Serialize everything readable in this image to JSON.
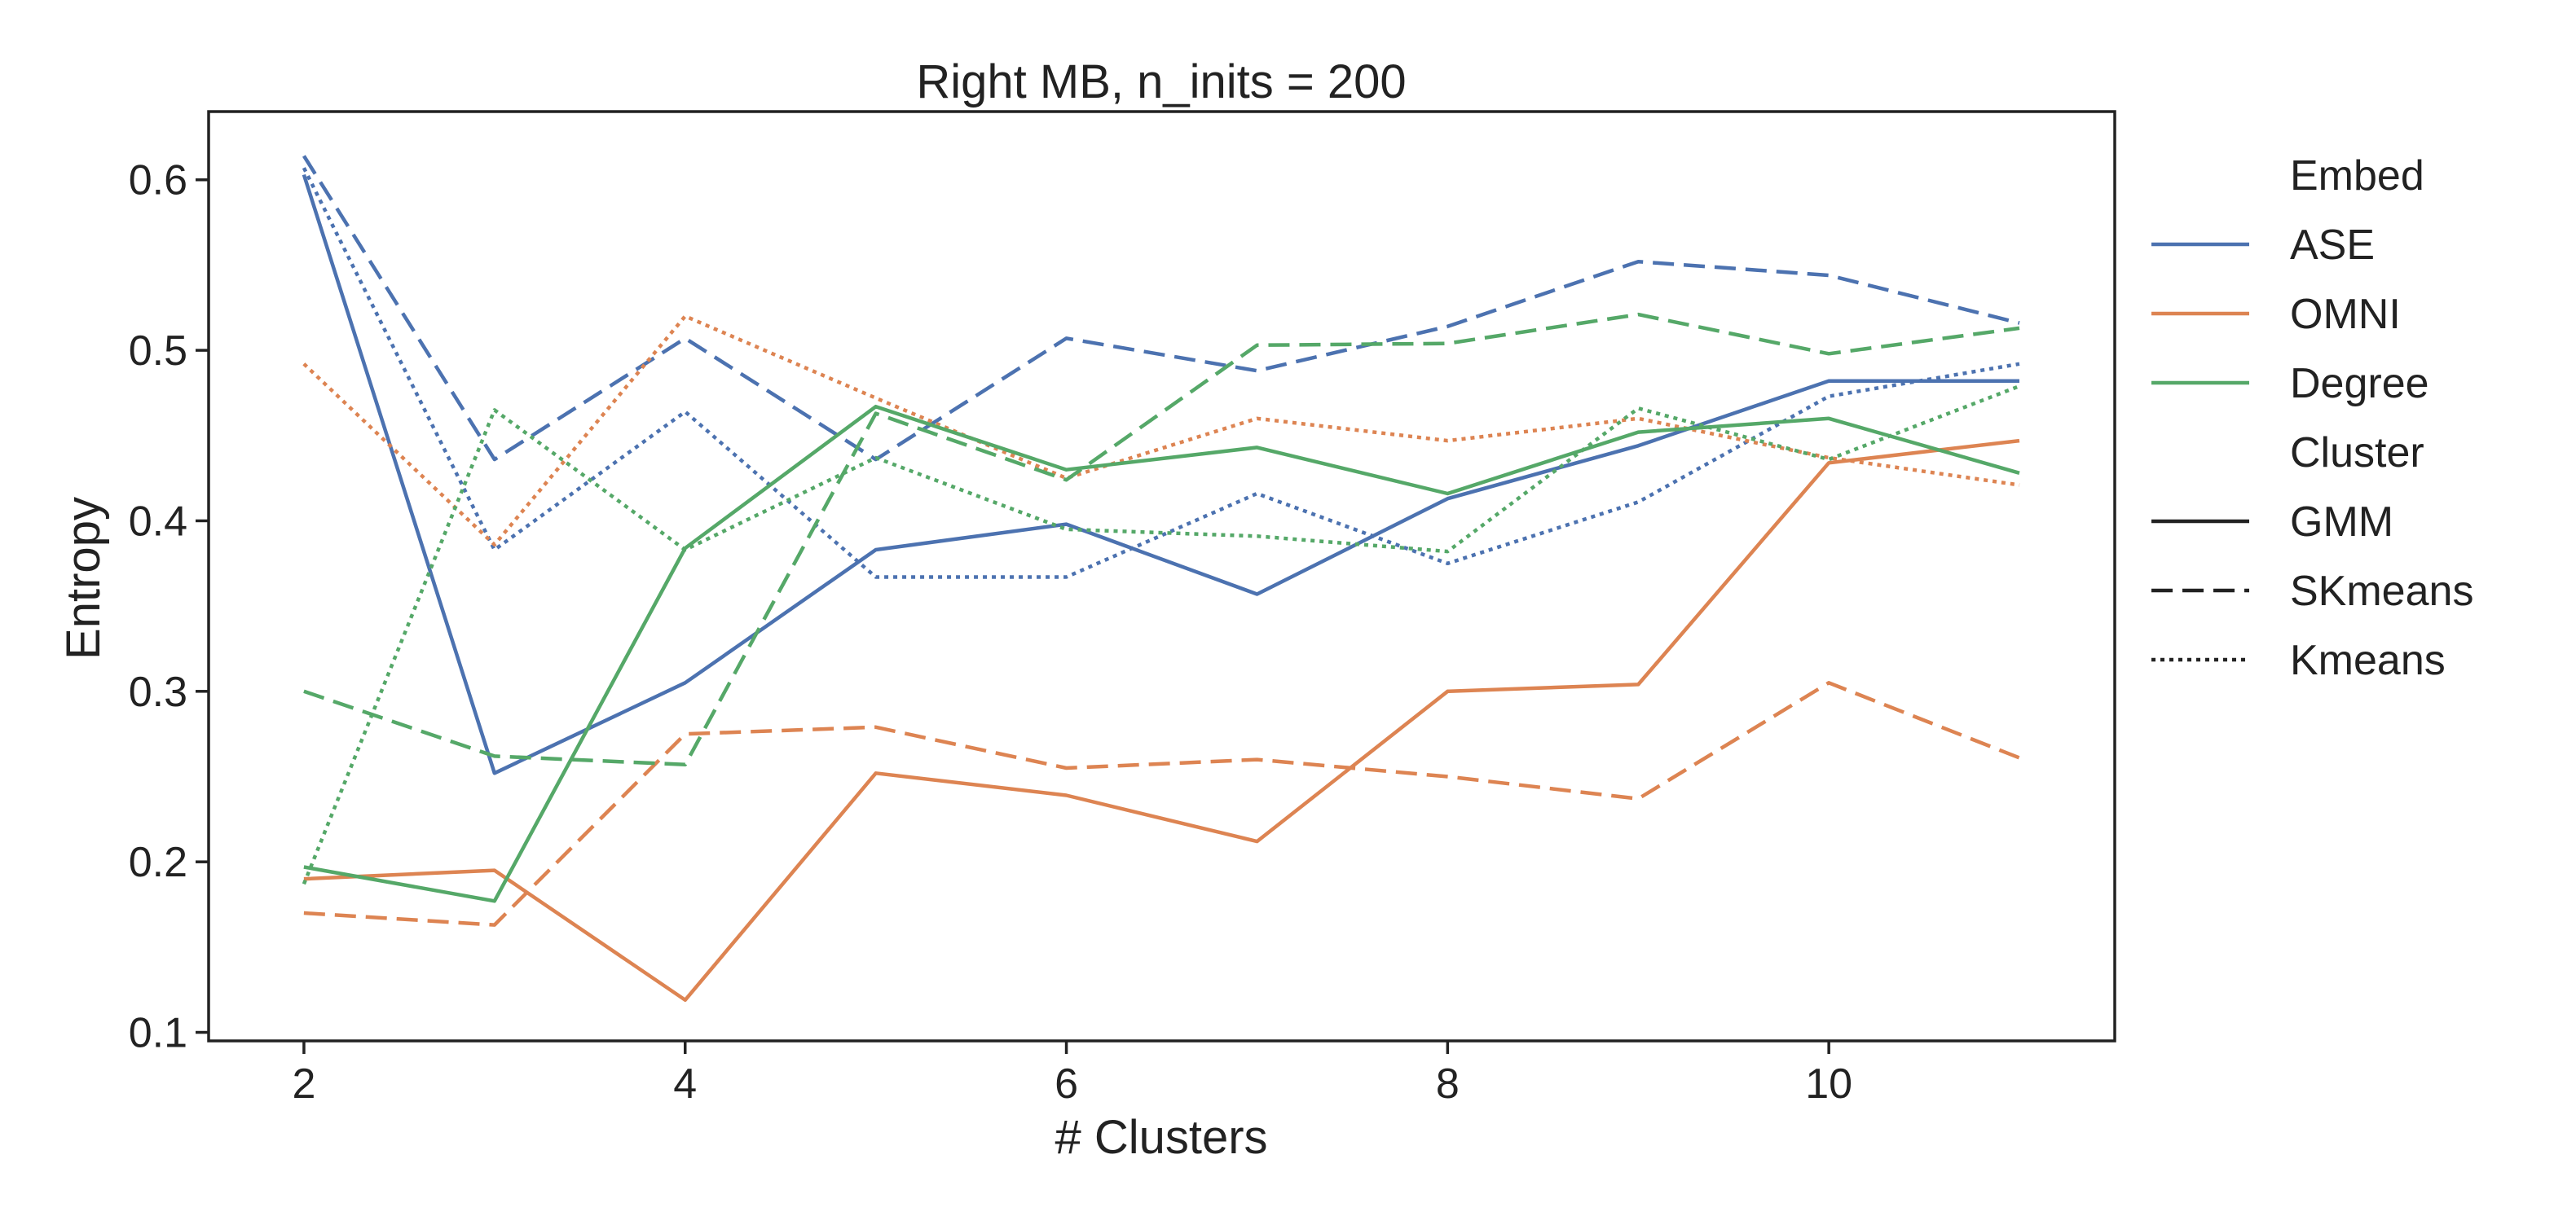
{
  "chart_data": {
    "type": "line",
    "title": "Right MB, n_inits = 200",
    "xlabel": "# Clusters",
    "ylabel": "Entropy",
    "xlim": [
      1.5,
      11.5
    ],
    "ylim": [
      0.095,
      0.64
    ],
    "xticks": [
      2,
      4,
      6,
      8,
      10
    ],
    "yticks": [
      0.1,
      0.2,
      0.3,
      0.4,
      0.5,
      0.6
    ],
    "x": [
      2,
      3,
      4,
      5,
      6,
      7,
      8,
      9,
      10,
      11
    ],
    "legend": {
      "placement": "outside-right",
      "groups": [
        {
          "title": "Embed",
          "entries": [
            {
              "label": "ASE",
              "color": "#4c72b0",
              "dash": "solid"
            },
            {
              "label": "OMNI",
              "color": "#dd8452",
              "dash": "solid"
            },
            {
              "label": "Degree",
              "color": "#55a868",
              "dash": "solid"
            }
          ]
        },
        {
          "title": "Cluster",
          "entries": [
            {
              "label": "GMM",
              "color": "#222222",
              "dash": "solid"
            },
            {
              "label": "SKmeans",
              "color": "#222222",
              "dash": "dashed"
            },
            {
              "label": "Kmeans",
              "color": "#222222",
              "dash": "dotted"
            }
          ]
        }
      ]
    },
    "series": [
      {
        "embed": "ASE",
        "cluster": "GMM",
        "color": "#4c72b0",
        "dash": "solid",
        "values": [
          0.603,
          0.252,
          0.305,
          0.383,
          0.398,
          0.357,
          0.413,
          0.444,
          0.482,
          0.482
        ]
      },
      {
        "embed": "ASE",
        "cluster": "SKmeans",
        "color": "#4c72b0",
        "dash": "dashed",
        "values": [
          0.614,
          0.436,
          0.507,
          0.436,
          0.507,
          0.488,
          0.514,
          0.552,
          0.544,
          0.516
        ]
      },
      {
        "embed": "ASE",
        "cluster": "Kmeans",
        "color": "#4c72b0",
        "dash": "dotted",
        "values": [
          0.607,
          0.383,
          0.464,
          0.367,
          0.367,
          0.416,
          0.375,
          0.411,
          0.473,
          0.492
        ]
      },
      {
        "embed": "OMNI",
        "cluster": "GMM",
        "color": "#dd8452",
        "dash": "solid",
        "values": [
          0.19,
          0.195,
          0.119,
          0.252,
          0.239,
          0.212,
          0.3,
          0.304,
          0.434,
          0.447
        ]
      },
      {
        "embed": "OMNI",
        "cluster": "SKmeans",
        "color": "#dd8452",
        "dash": "dashed",
        "values": [
          0.17,
          0.163,
          0.275,
          0.279,
          0.255,
          0.26,
          0.25,
          0.237,
          0.305,
          0.261
        ]
      },
      {
        "embed": "OMNI",
        "cluster": "Kmeans",
        "color": "#dd8452",
        "dash": "dotted",
        "values": [
          0.492,
          0.386,
          0.52,
          0.472,
          0.425,
          0.46,
          0.447,
          0.46,
          0.437,
          0.421
        ]
      },
      {
        "embed": "Degree",
        "cluster": "GMM",
        "color": "#55a868",
        "dash": "solid",
        "values": [
          0.197,
          0.177,
          0.384,
          0.467,
          0.43,
          0.443,
          0.416,
          0.452,
          0.46,
          0.428
        ]
      },
      {
        "embed": "Degree",
        "cluster": "SKmeans",
        "color": "#55a868",
        "dash": "dashed",
        "values": [
          0.3,
          0.262,
          0.257,
          0.463,
          0.424,
          0.503,
          0.504,
          0.521,
          0.498,
          0.513
        ]
      },
      {
        "embed": "Degree",
        "cluster": "Kmeans",
        "color": "#55a868",
        "dash": "dotted",
        "values": [
          0.187,
          0.465,
          0.383,
          0.437,
          0.395,
          0.391,
          0.382,
          0.466,
          0.436,
          0.479
        ]
      }
    ]
  }
}
